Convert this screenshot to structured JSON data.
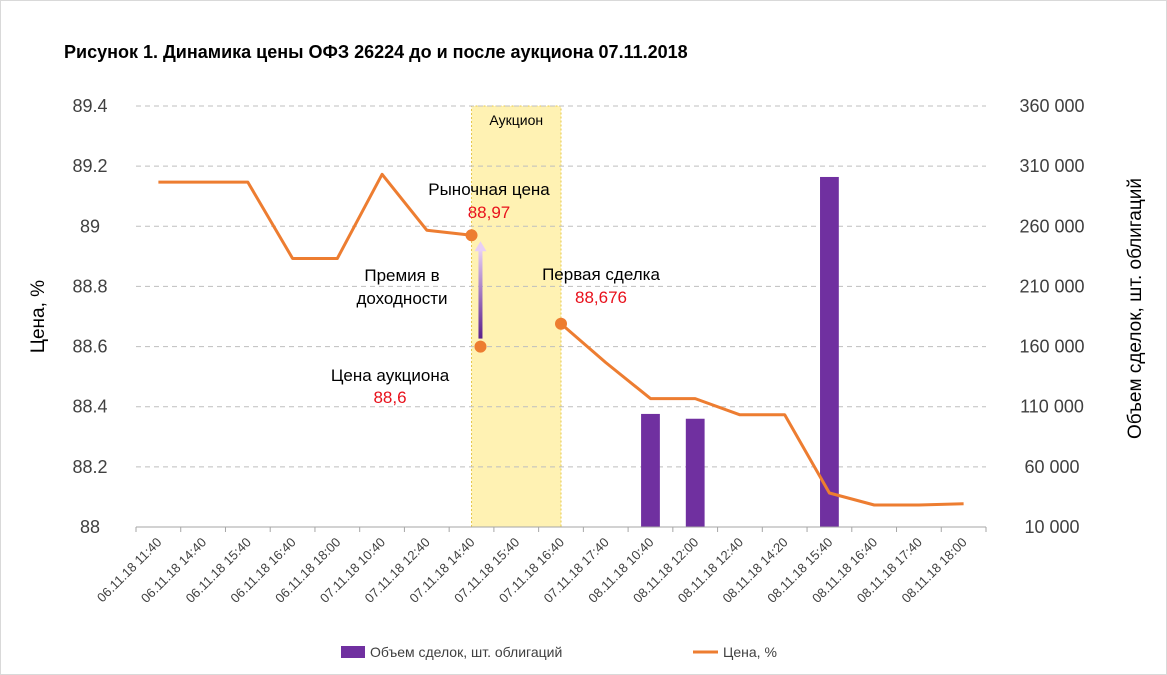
{
  "colors": {
    "bars": "#7030a0",
    "price_line": "#ed7d31",
    "annotation_value": "#e8101b",
    "auction_band": "#fff2b3",
    "auction_band_border": "#e6c84a",
    "grid": "#bfbfbf",
    "arrow_start": "#5b1f8c",
    "arrow_end": "#e8cff5"
  },
  "chart_data": {
    "type": "bar+line",
    "title": "Рисунок 1. Динамика цены ОФЗ 26224 до и после аукциона 07.11.2018",
    "ylabel": "Цена, %",
    "y2label": "Объем сделок, шт. облигаций",
    "ylim": [
      88,
      89.4
    ],
    "y2lim": [
      10000,
      360000
    ],
    "yticks": [
      "89.4",
      "89.2",
      "89",
      "88.8",
      "88.6",
      "88.4",
      "88.2",
      "88"
    ],
    "y2ticks": [
      "360 000",
      "310 000",
      "260 000",
      "210 000",
      "160 000",
      "110 000",
      "60 000",
      "10 000"
    ],
    "grid": true,
    "categories": [
      "06.11.18 11:40",
      "06.11.18 14:40",
      "06.11.18 15:40",
      "06.11.18 16:40",
      "06.11.18 18:00",
      "07.11.18 10:40",
      "07.11.18 12:40",
      "07.11.18 14:40",
      "07.11.18 15:40",
      "07.11.18 16:40",
      "07.11.18 17:40",
      "08.11.18 10:40",
      "08.11.18 12:00",
      "08.11.18 12:40",
      "08.11.18 14:20",
      "08.11.18 15:40",
      "08.11.18 16:40",
      "08.11.18 17:40",
      "08.11.18 18:00"
    ],
    "series": [
      {
        "name": "Объем сделок, шт. облигаций",
        "type": "bar",
        "axis": "right",
        "bars": [
          {
            "category": "08.11.18 10:40",
            "value": 104000
          },
          {
            "category": "08.11.18 12:00",
            "value": 100000
          },
          {
            "category": "08.11.18 15:40",
            "value": 301000
          }
        ]
      },
      {
        "name": "Цена, %",
        "type": "line",
        "axis": "left",
        "points": [
          [
            0.5,
            89.147
          ],
          [
            1.5,
            89.147
          ],
          [
            2.5,
            89.147
          ],
          [
            3.5,
            88.893
          ],
          [
            4.5,
            88.893
          ],
          [
            5.5,
            89.173
          ],
          [
            6.5,
            88.987
          ],
          [
            7.5,
            88.97
          ],
          [
            9.5,
            88.676
          ],
          [
            10.5,
            88.547
          ],
          [
            11.5,
            88.427
          ],
          [
            12.5,
            88.427
          ],
          [
            13.5,
            88.373
          ],
          [
            14.5,
            88.373
          ],
          [
            15.5,
            88.113
          ],
          [
            16.5,
            88.073
          ],
          [
            17.5,
            88.073
          ],
          [
            18.5,
            88.077
          ]
        ]
      }
    ],
    "auction_band": {
      "label": "Аукцион",
      "from": 7.5,
      "to": 9.5
    },
    "annotations": [
      {
        "label": "Рыночная цена",
        "value": "88,97",
        "x": 7.5,
        "y": 88.97
      },
      {
        "label": "Первая сделка",
        "value": "88,676",
        "x": 9.5,
        "y": 88.676
      },
      {
        "label": "Цена аукциона",
        "value": "88,6",
        "x": 7.7,
        "y": 88.6
      },
      {
        "label_lines": [
          "Премия в",
          "доходности"
        ]
      }
    ],
    "legend": {
      "position": "bottom"
    }
  }
}
